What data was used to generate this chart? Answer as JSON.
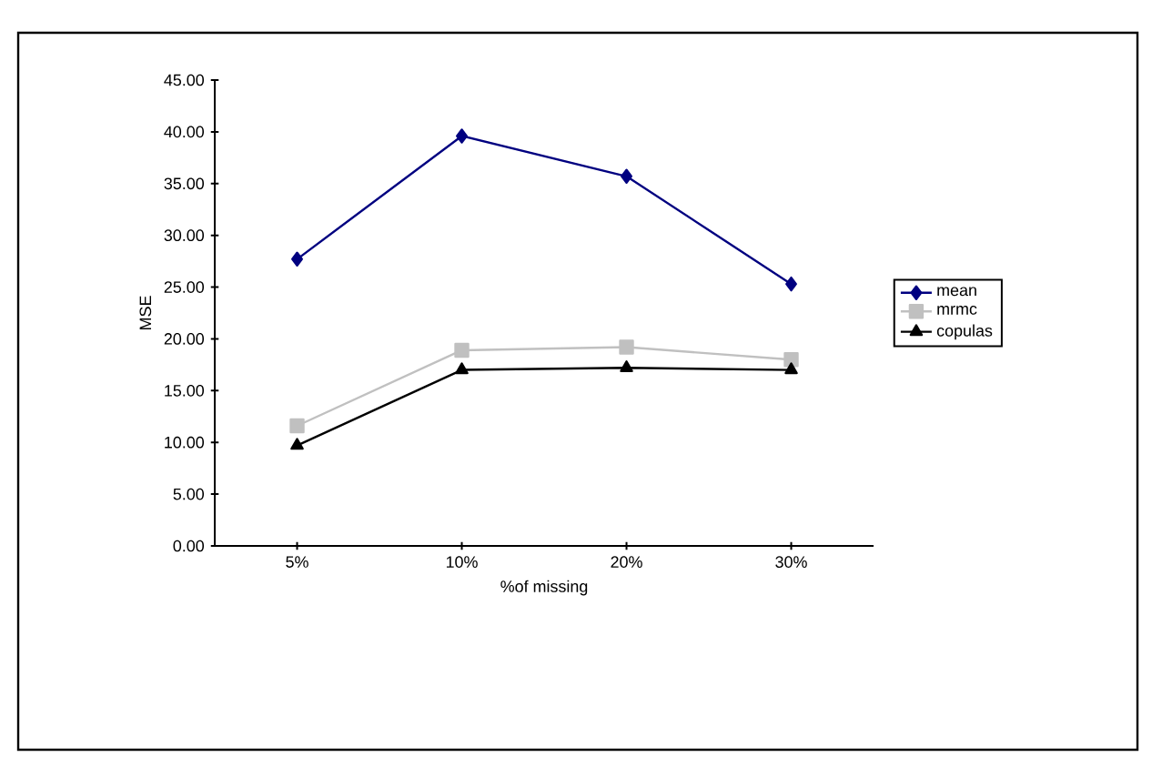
{
  "chart_data": {
    "type": "line",
    "xlabel": "%of missing",
    "ylabel": "MSE",
    "categories": [
      "5%",
      "10%",
      "20%",
      "30%"
    ],
    "series": [
      {
        "name": "mean",
        "color": "#000080",
        "marker": "diamond",
        "values": [
          27.7,
          39.6,
          35.7,
          25.3
        ]
      },
      {
        "name": "mrmc",
        "color": "#c0c0c0",
        "marker": "square",
        "values": [
          11.6,
          18.9,
          19.2,
          18.0
        ]
      },
      {
        "name": "copulas",
        "color": "#000000",
        "marker": "triangle",
        "values": [
          9.7,
          17.0,
          17.2,
          17.0
        ]
      }
    ],
    "ylim": [
      0,
      45
    ],
    "yticks": [
      {
        "value": 0,
        "label": "0.00"
      },
      {
        "value": 5,
        "label": "5.00"
      },
      {
        "value": 10,
        "label": "10.00"
      },
      {
        "value": 15,
        "label": "15.00"
      },
      {
        "value": 20,
        "label": "20.00"
      },
      {
        "value": 25,
        "label": "25.00"
      },
      {
        "value": 30,
        "label": "30.00"
      },
      {
        "value": 35,
        "label": "35.00"
      },
      {
        "value": 40,
        "label": "40.00"
      },
      {
        "value": 45,
        "label": "45.00"
      }
    ],
    "legend": "right"
  }
}
